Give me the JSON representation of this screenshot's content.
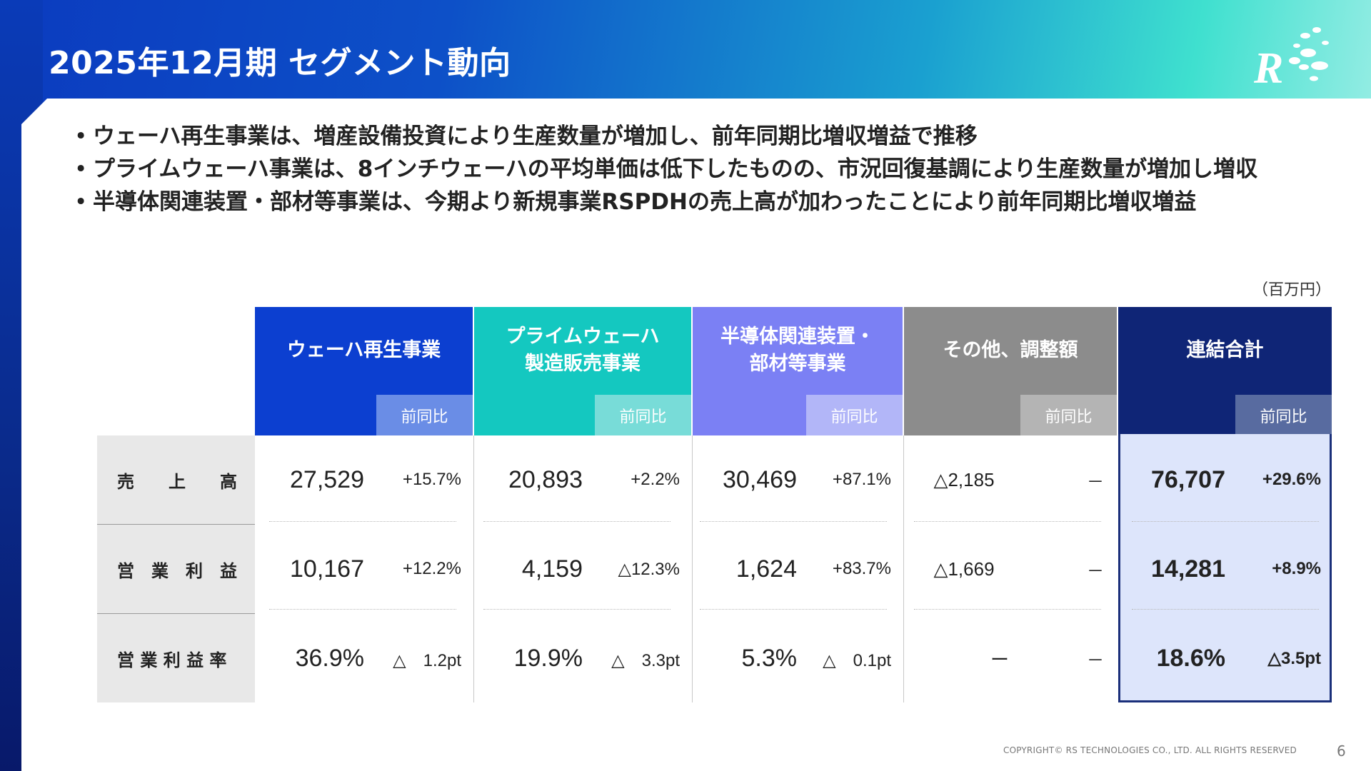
{
  "title": "2025年12月期 セグメント動向",
  "bullets": [
    "ウェーハ再生事業は、増産設備投資により生産数量が増加し、前年同期比増収増益で推移",
    "プライムウェーハ事業は、8インチウェーハの平均単価は低下したものの、市況回復基調により生産数量が増加し増収",
    "半導体関連装置・部材等事業は、今期より新規事業RSPDHの売上高が加わったことにより前年同期比増収増益"
  ],
  "unit": "（百万円）",
  "columns": [
    {
      "name": "ウェーハ再生事業",
      "yoy_label": "前同比",
      "color": "#0c3fd0",
      "yoy_color": "#6a8de6"
    },
    {
      "name": "プライムウェーハ\n製造販売事業",
      "yoy_label": "前同比",
      "color": "#14c8c0",
      "yoy_color": "#78dcd8"
    },
    {
      "name": "半導体関連装置・\n部材等事業",
      "yoy_label": "前同比",
      "color": "#7b80f4",
      "yoy_color": "#b2b6f8"
    },
    {
      "name": "その他、調整額",
      "yoy_label": "前同比",
      "color": "#8c8c8c",
      "yoy_color": "#b4b4b4"
    },
    {
      "name": "連結合計",
      "yoy_label": "前同比",
      "color": "#0f2576",
      "yoy_color": "#586ba0"
    }
  ],
  "rows": [
    {
      "label": "売　　上　　高",
      "cells": [
        {
          "value": "27,529",
          "yoy": "+15.7%"
        },
        {
          "value": "20,893",
          "yoy": "+2.2%"
        },
        {
          "value": "30,469",
          "yoy": "+87.1%"
        },
        {
          "value": "△2,185",
          "yoy": "－"
        },
        {
          "value": "76,707",
          "yoy": "+29.6%"
        }
      ]
    },
    {
      "label": "営　業　利　益",
      "cells": [
        {
          "value": "10,167",
          "yoy": "+12.2%"
        },
        {
          "value": "4,159",
          "yoy": "△12.3%"
        },
        {
          "value": "1,624",
          "yoy": "+83.7%"
        },
        {
          "value": "△1,669",
          "yoy": "－"
        },
        {
          "value": "14,281",
          "yoy": "+8.9%"
        }
      ]
    },
    {
      "label": "営 業 利 益 率",
      "cells": [
        {
          "value": "36.9%",
          "yoy": "△　1.2pt"
        },
        {
          "value": "19.9%",
          "yoy": "△　3.3pt"
        },
        {
          "value": "5.3%",
          "yoy": "△　0.1pt"
        },
        {
          "value": "ー",
          "yoy": "－"
        },
        {
          "value": "18.6%",
          "yoy": "△3.5pt"
        }
      ]
    }
  ],
  "footer": "COPYRIGHT© RS TECHNOLOGIES CO., LTD. ALL RIGHTS RESERVED",
  "page_number": "6"
}
